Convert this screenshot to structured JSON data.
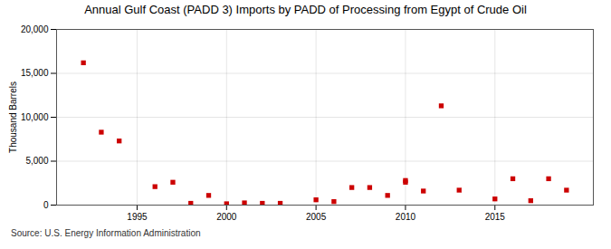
{
  "chart_data": {
    "type": "scatter",
    "title": "Annual Gulf Coast (PADD 3) Imports by PADD of Processing from Egypt of Crude Oil",
    "ylabel": "Thousand Barrels",
    "source": "Source: U.S. Energy Information Administration",
    "x": [
      1992,
      1993,
      1994,
      1996,
      1997,
      1998,
      1999,
      2000,
      2001,
      2002,
      2003,
      2005,
      2006,
      2007,
      2008,
      2009,
      2010,
      2010,
      2011,
      2012,
      2013,
      2015,
      2016,
      2017,
      2018,
      2019
    ],
    "values": [
      16200,
      8300,
      7300,
      2100,
      2600,
      200,
      1100,
      150,
      250,
      200,
      200,
      600,
      400,
      2000,
      2000,
      1100,
      2800,
      2600,
      1600,
      11300,
      1700,
      700,
      3000,
      500,
      3000,
      1700
    ],
    "color": "#cc0000",
    "marker": "square",
    "xlim": [
      1990.5,
      2020.5
    ],
    "xticks": [
      1995,
      2000,
      2005,
      2010,
      2015
    ],
    "ylim": [
      0,
      20000
    ],
    "yticks": [
      0,
      {
        "value": 5000,
        "label": "5,000"
      },
      {
        "value": 10000,
        "label": "10,000"
      },
      {
        "value": 15000,
        "label": "15,000"
      },
      {
        "value": 20000,
        "label": "20,000"
      }
    ],
    "grid": true
  }
}
